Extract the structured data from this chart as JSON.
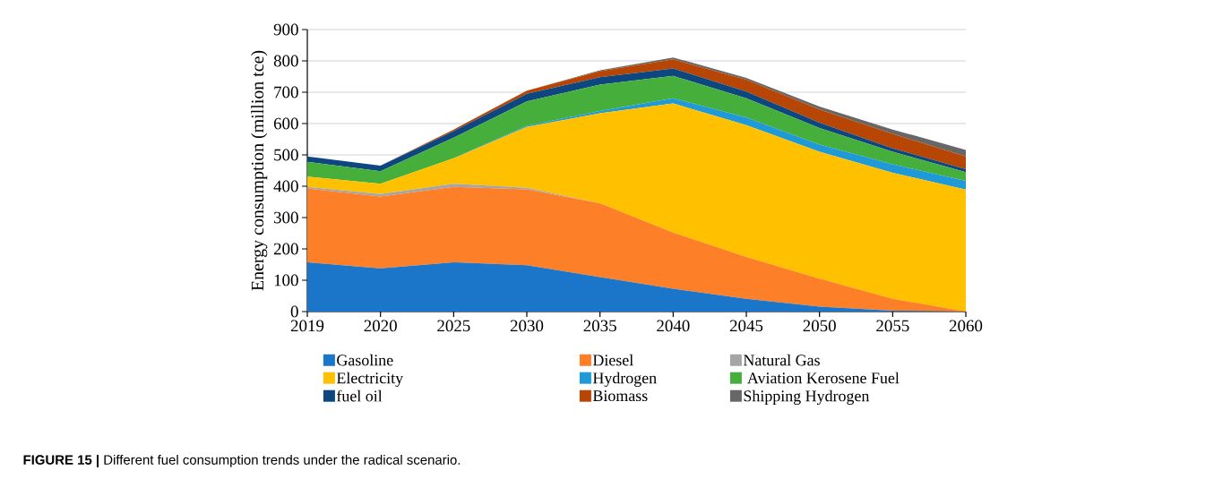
{
  "chart_data": {
    "type": "area",
    "stacked": true,
    "ylabel": "Energy consumption (million tce)",
    "categories": [
      "2019",
      "2020",
      "2025",
      "2030",
      "2035",
      "2040",
      "2045",
      "2050",
      "2055",
      "2060"
    ],
    "ylim": [
      0,
      900
    ],
    "yticks": [
      0,
      100,
      200,
      300,
      400,
      500,
      600,
      700,
      800,
      900
    ],
    "grid": "y",
    "legend": "bottom",
    "series": [
      {
        "name": "Gasoline",
        "color": "#1b75c9",
        "values": [
          157,
          138,
          157,
          148,
          110,
          73,
          41,
          16,
          3,
          0
        ]
      },
      {
        "name": "Diesel",
        "color": "#fd7f28",
        "values": [
          236,
          229,
          241,
          242,
          236,
          179,
          133,
          89,
          38,
          0
        ]
      },
      {
        "name": "Natural Gas",
        "color": "#a5a5a5",
        "values": [
          5,
          8,
          10,
          5,
          0,
          0,
          0,
          0,
          0,
          0
        ]
      },
      {
        "name": "Electricity",
        "color": "#ffc000",
        "values": [
          33,
          33,
          81,
          194,
          287,
          412,
          421,
          405,
          402,
          389
        ]
      },
      {
        "name": "Hydrogen",
        "color": "#1f9ad6",
        "values": [
          0,
          0,
          0,
          4,
          7,
          17,
          24,
          23,
          27,
          28
        ]
      },
      {
        "name": " Aviation Kerosene Fuel",
        "color": "#46af3c",
        "values": [
          47,
          40,
          66,
          78,
          84,
          71,
          62,
          53,
          40,
          28
        ]
      },
      {
        "name": "fuel oil",
        "color": "#0e4680",
        "values": [
          17,
          18,
          21,
          24,
          24,
          24,
          21,
          17,
          11,
          9
        ]
      },
      {
        "name": "Biomass",
        "color": "#b74504",
        "values": [
          0,
          0,
          5,
          10,
          19,
          29,
          38,
          42,
          46,
          41
        ]
      },
      {
        "name": "Shipping Hydrogen",
        "color": "#676767",
        "values": [
          0,
          0,
          0,
          0,
          3,
          6,
          6,
          9,
          14,
          21
        ]
      }
    ],
    "annotations": [
      "**FIGURE 15 |** Different fuel consumption trends under the radical scenario."
    ]
  }
}
